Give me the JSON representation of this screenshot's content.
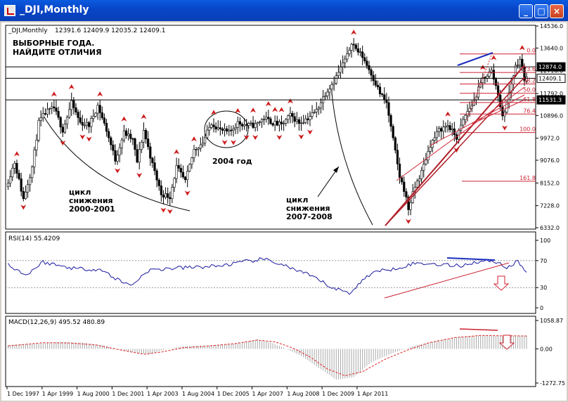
{
  "window": {
    "title": "_DJI,Monthly",
    "btn_min": "_",
    "btn_max": "□",
    "btn_close": "×"
  },
  "chart_data": [
    {
      "type": "candlestick",
      "title": "_DJI,Monthly",
      "ohlc": "12391.6 12409.9 12035.2 12409.1",
      "y_ticks": [
        "14536.0",
        "13640.0",
        "12716.0",
        "11792.0",
        "10896.0",
        "9972.0",
        "9076.0",
        "8152.0",
        "7228.0",
        "6332.0"
      ],
      "price_labels": [
        {
          "value": "12874.0",
          "y": 12874,
          "style": "black"
        },
        {
          "value": "12409.1",
          "y": 12409.1,
          "style": "white"
        },
        {
          "value": "11531.3",
          "y": 11531.3,
          "style": "black"
        }
      ],
      "hlines": [
        12874.0,
        12409.1,
        11531.3
      ],
      "fib": {
        "high": 13400,
        "low": 10200,
        "extension_to": 8700,
        "levels": [
          {
            "label": "0.0",
            "r": 0
          },
          {
            "label": "23.6",
            "r": 0.236
          },
          {
            "label": "38.2",
            "r": 0.382
          },
          {
            "label": "50.0",
            "r": 0.5
          },
          {
            "label": "61.8",
            "r": 0.618
          },
          {
            "label": "76.4",
            "r": 0.764
          },
          {
            "label": "100.0",
            "r": 1.0
          },
          {
            "label": "161.8",
            "r": 1.618
          }
        ]
      },
      "annotation_title": [
        "ВЫБОРНЫЕ ГОДА.",
        "НАЙДИТЕ ОТЛИЧИЯ"
      ],
      "cycle1": [
        "цикл",
        "снижения",
        "2000-2001"
      ],
      "cycle2": [
        "цикл",
        "снижения",
        "2007-2008"
      ],
      "label_2004": "2004 год",
      "anchors": [
        [
          0,
          8000
        ],
        [
          4,
          9000
        ],
        [
          8,
          7500
        ],
        [
          12,
          8800
        ],
        [
          15,
          10600
        ],
        [
          18,
          11000
        ],
        [
          22,
          11200
        ],
        [
          26,
          10300
        ],
        [
          30,
          11400
        ],
        [
          34,
          10600
        ],
        [
          38,
          10500
        ],
        [
          42,
          11300
        ],
        [
          46,
          10300
        ],
        [
          50,
          9100
        ],
        [
          54,
          10200
        ],
        [
          58,
          9900
        ],
        [
          60,
          9000
        ],
        [
          63,
          10300
        ],
        [
          67,
          8900
        ],
        [
          71,
          7700
        ],
        [
          75,
          7600
        ],
        [
          78,
          8800
        ],
        [
          82,
          8200
        ],
        [
          86,
          9500
        ],
        [
          90,
          9800
        ],
        [
          94,
          10600
        ],
        [
          98,
          10300
        ],
        [
          102,
          10200
        ],
        [
          106,
          10600
        ],
        [
          110,
          10500
        ],
        [
          114,
          10500
        ],
        [
          118,
          10800
        ],
        [
          122,
          10600
        ],
        [
          126,
          10500
        ],
        [
          130,
          10900
        ],
        [
          134,
          10600
        ],
        [
          138,
          10800
        ],
        [
          142,
          11100
        ],
        [
          146,
          11800
        ],
        [
          150,
          12300
        ],
        [
          154,
          13000
        ],
        [
          156,
          13300
        ],
        [
          158,
          13900
        ],
        [
          160,
          13600
        ],
        [
          163,
          13300
        ],
        [
          167,
          12600
        ],
        [
          171,
          11800
        ],
        [
          174,
          11400
        ],
        [
          176,
          10400
        ],
        [
          178,
          9400
        ],
        [
          180,
          8400
        ],
        [
          182,
          7900
        ],
        [
          184,
          7100
        ],
        [
          187,
          8000
        ],
        [
          190,
          8600
        ],
        [
          194,
          9700
        ],
        [
          198,
          10300
        ],
        [
          202,
          10500
        ],
        [
          206,
          10000
        ],
        [
          210,
          10900
        ],
        [
          214,
          11500
        ],
        [
          218,
          12400
        ],
        [
          222,
          12700
        ],
        [
          225,
          11800
        ],
        [
          227,
          10800
        ],
        [
          229,
          11400
        ],
        [
          231,
          12200
        ],
        [
          233,
          12900
        ],
        [
          235,
          13200
        ],
        [
          236,
          12800
        ],
        [
          237,
          12409
        ]
      ],
      "x_ticks": [
        {
          "label": "1 Dec 1997",
          "m": 0
        },
        {
          "label": "1 Apr 1999",
          "m": 16
        },
        {
          "label": "1 Aug 2000",
          "m": 32
        },
        {
          "label": "1 Dec 2001",
          "m": 48
        },
        {
          "label": "1 Apr 2003",
          "m": 64
        },
        {
          "label": "1 Aug 2004",
          "m": 80
        },
        {
          "label": "1 Dec 2005",
          "m": 96
        },
        {
          "label": "1 Apr 2007",
          "m": 112
        },
        {
          "label": "1 Aug 2008",
          "m": 128
        },
        {
          "label": "1 Dec 2009",
          "m": 144
        },
        {
          "label": "1 Apr 2011",
          "m": 160
        }
      ]
    },
    {
      "type": "line",
      "title": "RSI(14) 55.4209",
      "y_ticks": [
        "100",
        "70",
        "30",
        "0"
      ],
      "levels": [
        70,
        30
      ],
      "anchors": [
        [
          0,
          65
        ],
        [
          8,
          48
        ],
        [
          16,
          68
        ],
        [
          24,
          62
        ],
        [
          32,
          58
        ],
        [
          42,
          57
        ],
        [
          50,
          42
        ],
        [
          56,
          33
        ],
        [
          64,
          55
        ],
        [
          72,
          58
        ],
        [
          84,
          60
        ],
        [
          96,
          62
        ],
        [
          108,
          68
        ],
        [
          116,
          72
        ],
        [
          124,
          66
        ],
        [
          132,
          55
        ],
        [
          140,
          45
        ],
        [
          148,
          30
        ],
        [
          156,
          22
        ],
        [
          166,
          52
        ],
        [
          176,
          58
        ],
        [
          186,
          66
        ],
        [
          196,
          65
        ],
        [
          206,
          62
        ],
        [
          214,
          68
        ],
        [
          222,
          70
        ],
        [
          228,
          60
        ],
        [
          233,
          68
        ],
        [
          237,
          55
        ]
      ]
    },
    {
      "type": "bar",
      "title": "MACD(12,26,9) 495.52 480.89",
      "y_ticks": [
        "1058.87",
        "0.00",
        "-1272.75"
      ],
      "ylim": [
        -1272.75,
        1058.87
      ],
      "macd_anchors": [
        [
          0,
          150
        ],
        [
          14,
          200
        ],
        [
          24,
          260
        ],
        [
          34,
          230
        ],
        [
          44,
          120
        ],
        [
          54,
          -80
        ],
        [
          64,
          -220
        ],
        [
          72,
          -20
        ],
        [
          80,
          100
        ],
        [
          92,
          130
        ],
        [
          104,
          200
        ],
        [
          114,
          350
        ],
        [
          120,
          240
        ],
        [
          126,
          50
        ],
        [
          134,
          -260
        ],
        [
          142,
          -700
        ],
        [
          150,
          -1150
        ],
        [
          158,
          -1050
        ],
        [
          166,
          -500
        ],
        [
          176,
          -150
        ],
        [
          186,
          120
        ],
        [
          196,
          300
        ],
        [
          206,
          450
        ],
        [
          216,
          500
        ],
        [
          226,
          480
        ],
        [
          237,
          495
        ]
      ],
      "signal_anchors": [
        [
          0,
          110
        ],
        [
          16,
          230
        ],
        [
          28,
          220
        ],
        [
          40,
          150
        ],
        [
          52,
          -50
        ],
        [
          62,
          -200
        ],
        [
          70,
          -120
        ],
        [
          80,
          40
        ],
        [
          92,
          110
        ],
        [
          104,
          200
        ],
        [
          114,
          330
        ],
        [
          122,
          260
        ],
        [
          130,
          40
        ],
        [
          138,
          -300
        ],
        [
          146,
          -750
        ],
        [
          154,
          -1000
        ],
        [
          162,
          -850
        ],
        [
          172,
          -400
        ],
        [
          182,
          -60
        ],
        [
          192,
          220
        ],
        [
          204,
          420
        ],
        [
          216,
          500
        ],
        [
          226,
          490
        ],
        [
          237,
          481
        ]
      ]
    }
  ]
}
